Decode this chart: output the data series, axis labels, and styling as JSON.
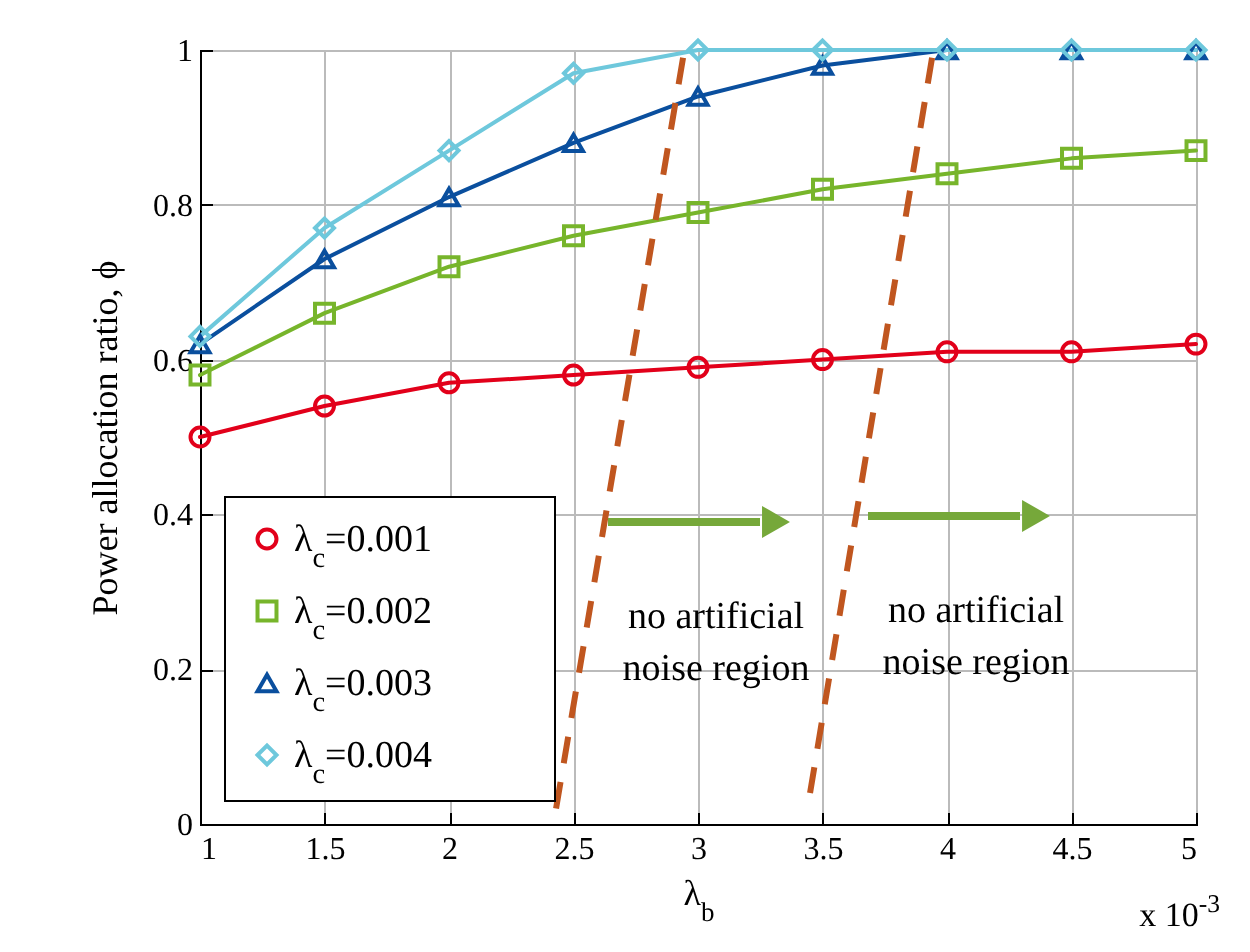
{
  "chart_data": {
    "type": "line",
    "xlabel": "λ$_{b}$",
    "ylabel": "Power allocation ratio, ϕ",
    "x": [
      1,
      1.5,
      2,
      2.5,
      3,
      3.5,
      4,
      4.5,
      5
    ],
    "xlim": [
      1,
      5
    ],
    "xticks": [
      1,
      1.5,
      2,
      2.5,
      3,
      3.5,
      4,
      4.5,
      5
    ],
    "ylim": [
      0,
      1
    ],
    "yticks": [
      0,
      0.2,
      0.4,
      0.6,
      0.8,
      1
    ],
    "grid": true,
    "legend": "bottom left",
    "line_style": "solid",
    "series": [
      {
        "name": "λ$_{c}$=0.001",
        "color": "#e2001a",
        "marker": "circle",
        "values": [
          0.5,
          0.54,
          0.57,
          0.58,
          0.59,
          0.6,
          0.61,
          0.61,
          0.62
        ]
      },
      {
        "name": "λ$_{c}$=0.002",
        "color": "#77b52b",
        "marker": "square",
        "values": [
          0.58,
          0.66,
          0.72,
          0.76,
          0.79,
          0.82,
          0.84,
          0.86,
          0.87
        ]
      },
      {
        "name": "λ$_{c}$=0.003",
        "color": "#0a4f9e",
        "marker": "triangle",
        "values": [
          0.62,
          0.73,
          0.81,
          0.88,
          0.94,
          0.98,
          1,
          1,
          1
        ]
      },
      {
        "name": "λ$_{c}$=0.004",
        "color": "#6ec8dc",
        "marker": "diamond",
        "values": [
          0.63,
          0.77,
          0.87,
          0.97,
          1,
          1,
          1,
          1,
          1
        ]
      },
      {
        "color": "#c0561f",
        "marker": "none",
        "line_style": "dashed",
        "x": [
          2.43,
          2.94
        ],
        "values": [
          0.02,
          0.99
        ]
      },
      {
        "color": "#c0561f",
        "marker": "none",
        "line_style": "dashed",
        "x": [
          3.45,
          3.94
        ],
        "values": [
          0.04,
          0.99
        ]
      }
    ],
    "annotations": [
      "no artificial\nnoise region",
      "no artificial\nnoise region",
      "x 10$^{-3}$"
    ]
  }
}
